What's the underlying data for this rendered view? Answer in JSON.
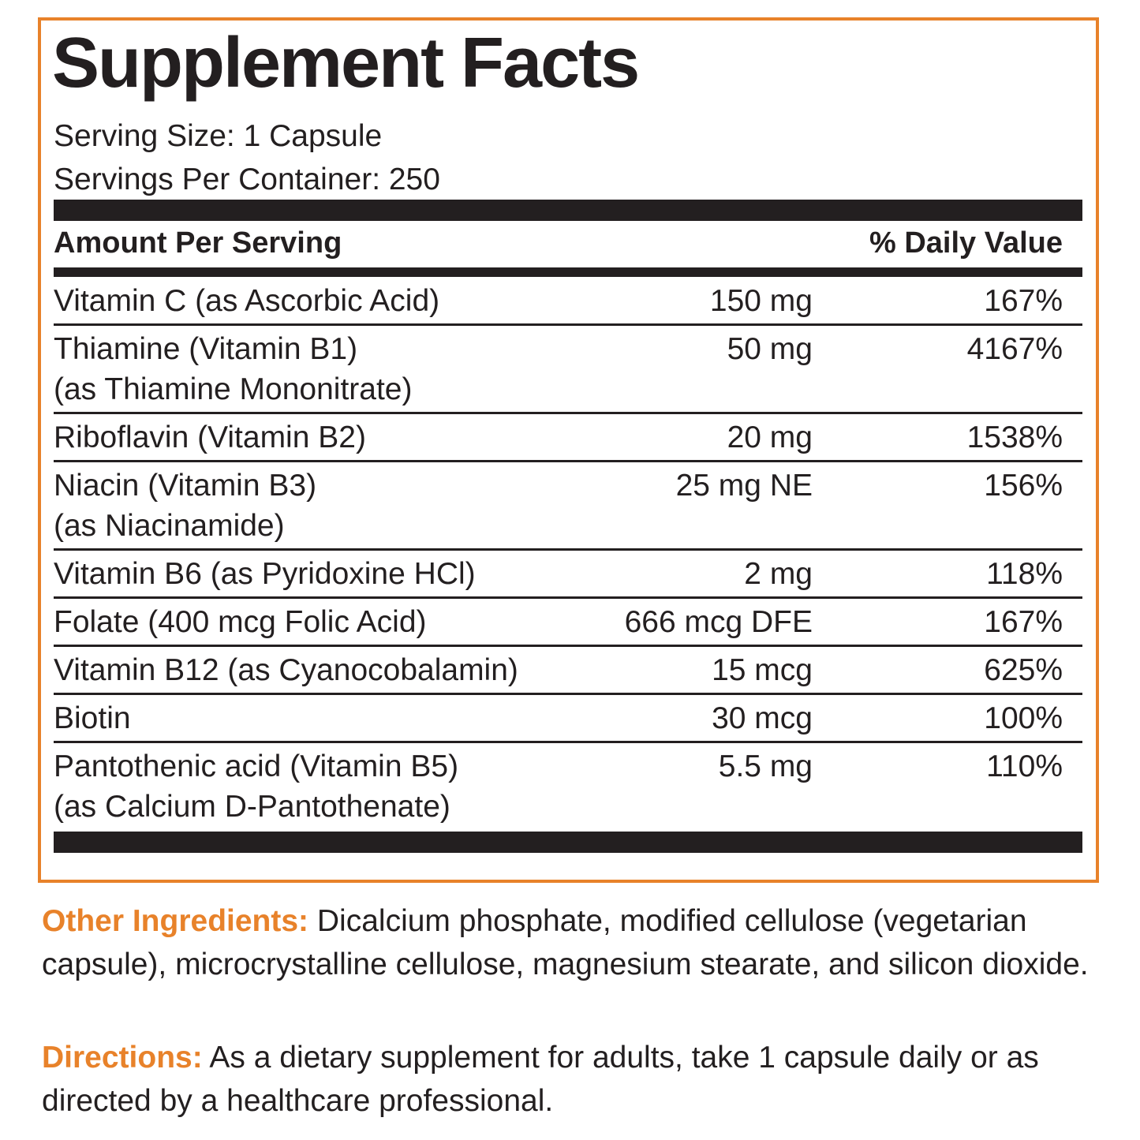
{
  "title": "Supplement Facts",
  "serving_size": "Serving Size: 1 Capsule",
  "servings_per_container": "Servings Per Container: 250",
  "table": {
    "header": [
      "Amount Per Serving",
      "% Daily Value"
    ],
    "rows": [
      {
        "name": [
          "Vitamin C (as Ascorbic Acid)"
        ],
        "amount": "150 mg",
        "daily_value": "167%"
      },
      {
        "name": [
          "Thiamine (Vitamin B1)",
          "(as Thiamine Mononitrate)"
        ],
        "amount": "50 mg",
        "daily_value": "4167%"
      },
      {
        "name": [
          "Riboflavin (Vitamin B2)"
        ],
        "amount": "20 mg",
        "daily_value": "1538%"
      },
      {
        "name": [
          "Niacin (Vitamin B3)",
          "(as Niacinamide)"
        ],
        "amount": "25 mg NE",
        "daily_value": "156%"
      },
      {
        "name": [
          "Vitamin B6 (as Pyridoxine HCl)"
        ],
        "amount": "2 mg",
        "daily_value": "118%"
      },
      {
        "name": [
          "Folate (400 mcg Folic Acid)"
        ],
        "amount": "666 mcg DFE",
        "daily_value": "167%"
      },
      {
        "name": [
          "Vitamin B12 (as Cyanocobalamin)"
        ],
        "amount": "15 mcg",
        "daily_value": "625%"
      },
      {
        "name": [
          "Biotin"
        ],
        "amount": "30 mcg",
        "daily_value": "100%"
      },
      {
        "name": [
          "Pantothenic acid (Vitamin B5)",
          "(as Calcium D-Pantothenate)"
        ],
        "amount": "5.5 mg",
        "daily_value": "110%"
      }
    ]
  },
  "other_ingredients": {
    "label": "Other Ingredients:",
    "text": "Dicalcium phosphate, modified cellulose (vegetarian capsule), microcrystalline cellulose,  magnesium stearate, and silicon dioxide."
  },
  "directions": {
    "label": "Directions:",
    "text": "As a dietary supplement for adults, take 1 capsule daily or as directed by a healthcare professional."
  }
}
